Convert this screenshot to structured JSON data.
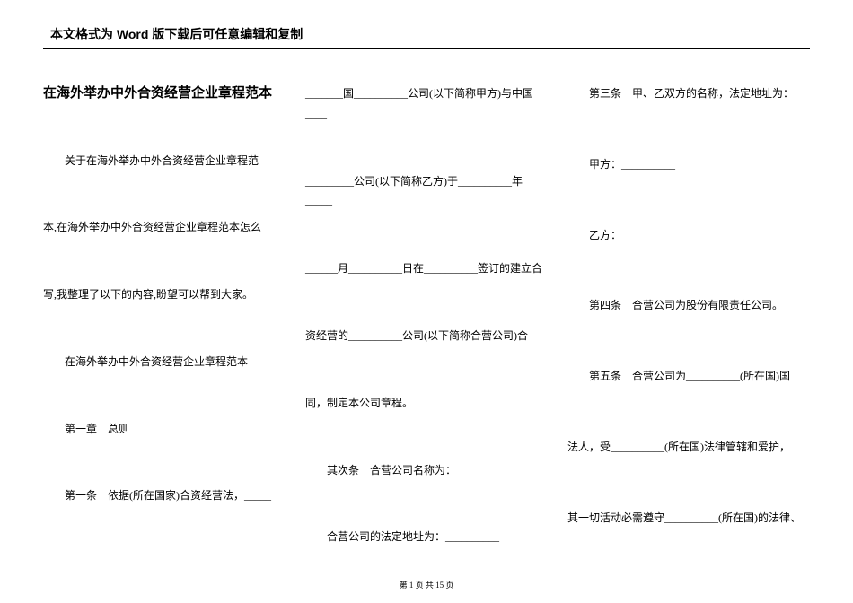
{
  "header": "本文格式为 Word 版下载后可任意编辑和复制",
  "col1": {
    "title": "在海外举办中外合资经营企业章程范本",
    "p1": "关于在海外举办中外合资经营企业章程范",
    "p2": "本,在海外举办中外合资经营企业章程范本怎么",
    "p3": "写,我整理了以下的内容,盼望可以帮到大家。",
    "p4": "在海外举办中外合资经营企业章程范本",
    "p5": "第一章　总则",
    "p6": "第一条　依据(所在国家)合资经营法，_____"
  },
  "col2": {
    "p1": "_______国__________公司(以下简称甲方)与中国____",
    "p2": "_________公司(以下简称乙方)于__________年_____",
    "p3": "______月__________日在__________签订的建立合",
    "p4": "资经营的__________公司(以下简称合营公司)合",
    "p5": "同，制定本公司章程。",
    "p6": "其次条　合营公司名称为：",
    "p7": "合营公司的法定地址为：__________"
  },
  "col3": {
    "p1": "第三条　甲、乙双方的名称，法定地址为：",
    "p2": "甲方：__________",
    "p3": "乙方：__________",
    "p4": "第四条　合营公司为股份有限责任公司。",
    "p5": "第五条　合营公司为__________(所在国)国",
    "p6": "法人，受__________(所在国)法律管辖和爱护，",
    "p7": "其一切活动必需遵守__________(所在国)的法律、"
  },
  "footer": "第 1 页 共 15 页"
}
